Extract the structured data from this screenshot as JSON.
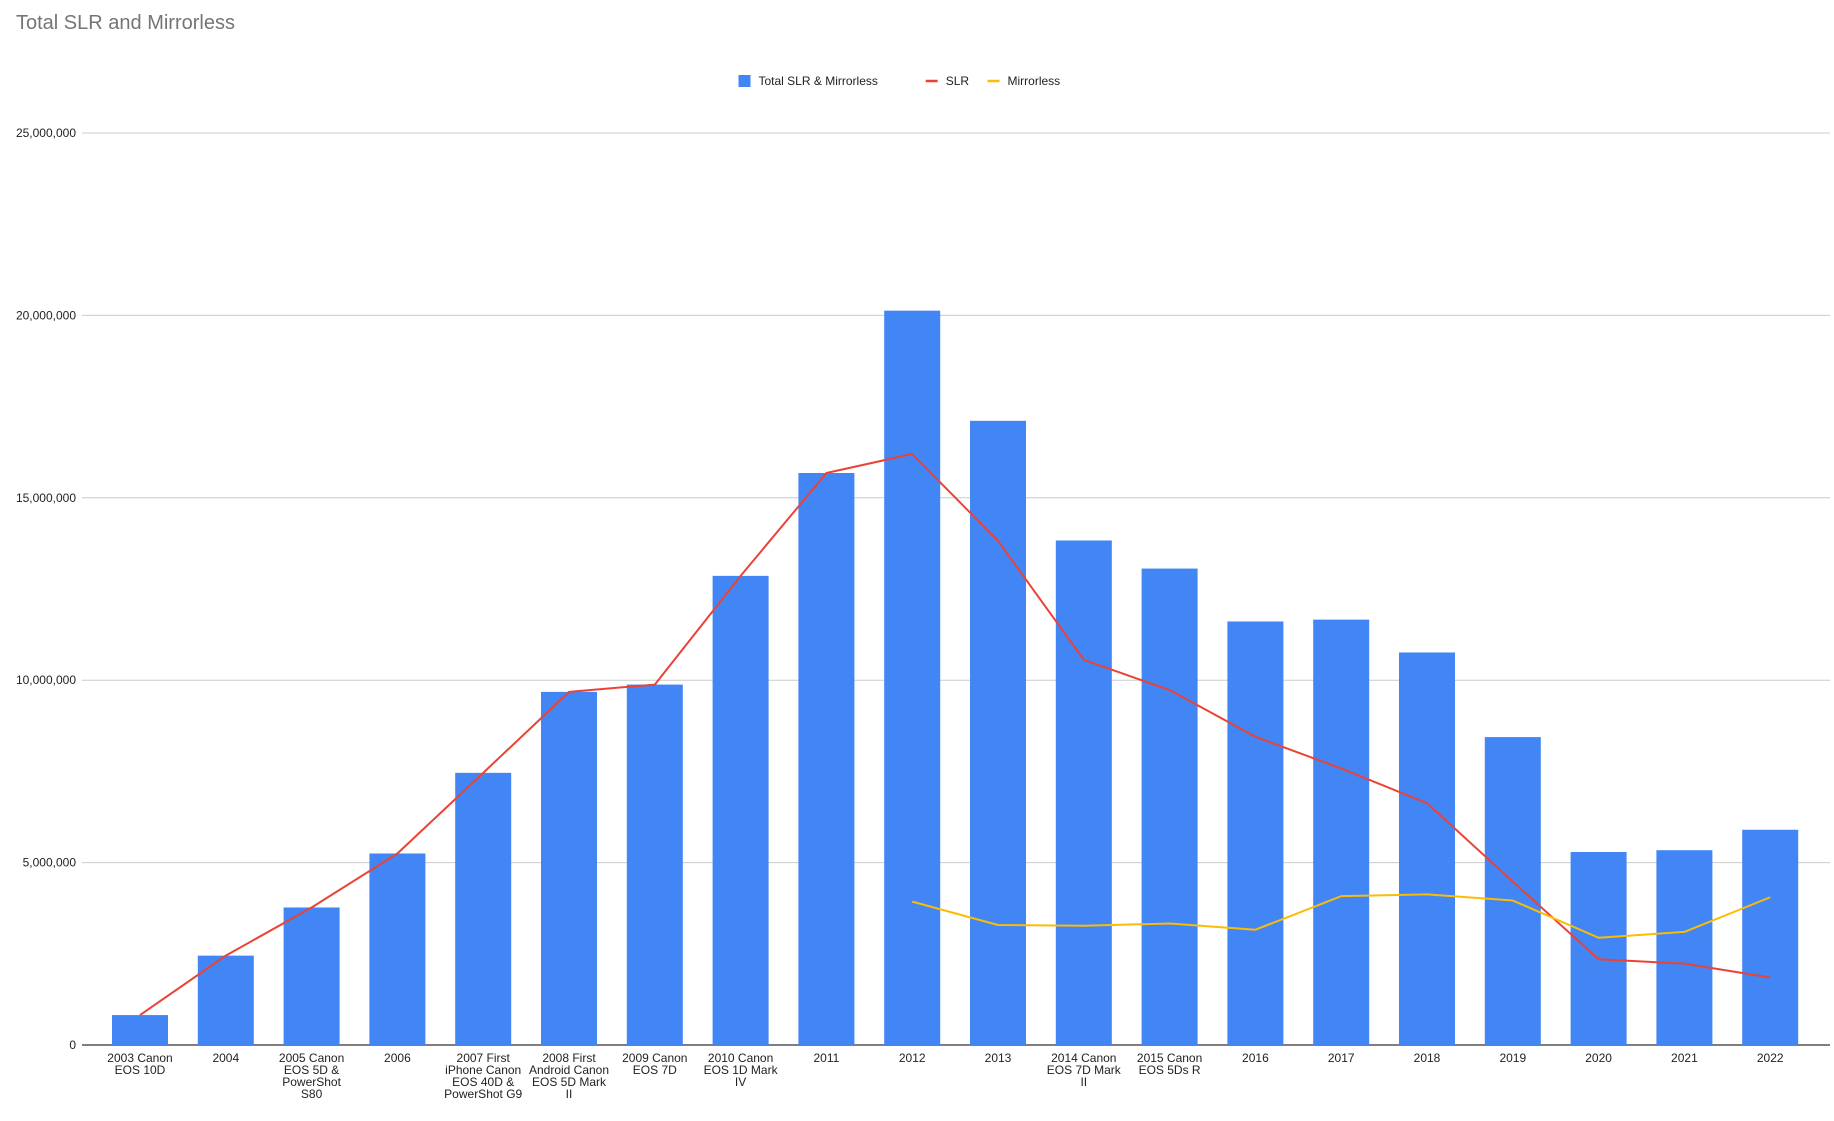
{
  "chart_data": {
    "type": "bar",
    "title": "Total SLR and Mirrorless",
    "xlabel": "",
    "ylabel": "",
    "ylim": [
      0,
      25000000
    ],
    "yticks": [
      0,
      5000000,
      10000000,
      15000000,
      20000000,
      25000000
    ],
    "ytick_labels": [
      "0",
      "5,000,000",
      "10,000,000",
      "15,000,000",
      "20,000,000",
      "25,000,000"
    ],
    "grid": true,
    "legend_position": "top-center",
    "categories": [
      [
        "2003 Canon",
        "EOS 10D"
      ],
      [
        "2004"
      ],
      [
        "2005 Canon",
        "EOS 5D &",
        "PowerShot",
        "S80"
      ],
      [
        "2006"
      ],
      [
        "2007 First",
        "iPhone Canon",
        "EOS 40D &",
        "PowerShot G9"
      ],
      [
        "2008 First",
        "Android Canon",
        "EOS 5D Mark",
        "II"
      ],
      [
        "2009 Canon",
        "EOS 7D"
      ],
      [
        "2010 Canon",
        "EOS 1D Mark",
        "IV"
      ],
      [
        "2011"
      ],
      [
        "2012"
      ],
      [
        "2013"
      ],
      [
        "2014 Canon",
        "EOS 7D Mark",
        "II"
      ],
      [
        "2015 Canon",
        "EOS 5Ds R"
      ],
      [
        "2016"
      ],
      [
        "2017"
      ],
      [
        "2018"
      ],
      [
        "2019"
      ],
      [
        "2020"
      ],
      [
        "2021"
      ],
      [
        "2022"
      ]
    ],
    "series": [
      {
        "name": "Total SLR & Mirrorless",
        "kind": "bar",
        "color": "#4285f4",
        "values": [
          820000,
          2450000,
          3770000,
          5250000,
          7460000,
          9680000,
          9880000,
          12860000,
          15680000,
          20130000,
          17110000,
          13830000,
          13060000,
          11610000,
          11660000,
          10760000,
          8440000,
          5290000,
          5340000,
          5900000
        ]
      },
      {
        "name": "SLR",
        "kind": "line",
        "color": "#ea4335",
        "values": [
          820000,
          2450000,
          3770000,
          5250000,
          7460000,
          9680000,
          9880000,
          12860000,
          15680000,
          16200000,
          13820000,
          10560000,
          9730000,
          8450000,
          7580000,
          6630000,
          4480000,
          2350000,
          2230000,
          1850000
        ]
      },
      {
        "name": "Mirrorless",
        "kind": "line",
        "color": "#fbbc04",
        "values": [
          null,
          null,
          null,
          null,
          null,
          null,
          null,
          null,
          null,
          3930000,
          3290000,
          3270000,
          3330000,
          3160000,
          4080000,
          4130000,
          3960000,
          2940000,
          3100000,
          4050000
        ]
      }
    ]
  }
}
